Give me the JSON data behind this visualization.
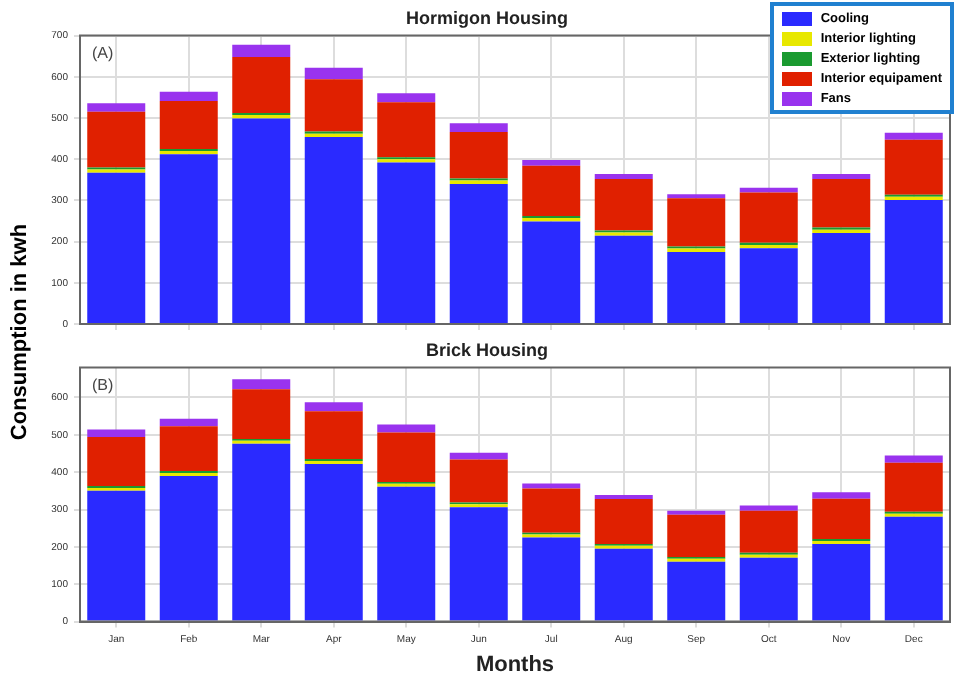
{
  "chart_data": [
    {
      "type": "bar",
      "title": "Hormigon Housing",
      "ylabel": "Consumption in kwh",
      "stacked": true,
      "legend": "top right",
      "tick_labels": "y",
      "grid": true,
      "annotations": [
        "(A)"
      ],
      "categories": [
        null,
        null,
        null,
        null,
        null,
        null,
        null,
        null,
        null,
        null,
        null,
        null
      ],
      "ylim": [
        0,
        700
      ],
      "yticks": [
        0,
        100,
        200,
        300,
        400,
        500,
        600,
        700
      ],
      "series": [
        {
          "name": "Cooling",
          "color": "#2a2aff",
          "values": [
            367,
            412,
            499,
            454,
            392,
            340,
            249,
            214,
            175,
            184,
            221,
            301
          ]
        },
        {
          "name": "Interior lighting",
          "color": "#e8e800",
          "values": [
            8,
            8,
            8,
            8,
            8,
            8,
            8,
            8,
            8,
            8,
            8,
            8
          ]
        },
        {
          "name": "Exterior lighting",
          "color": "#1a9a30",
          "values": [
            5,
            5,
            5,
            5,
            5,
            5,
            5,
            5,
            5,
            5,
            5,
            5
          ]
        },
        {
          "name": "Interior equipament",
          "color": "#e02000",
          "values": [
            135,
            116,
            136,
            127,
            133,
            113,
            122,
            125,
            117,
            122,
            118,
            133
          ]
        },
        {
          "name": "Fans",
          "color": "#9933ee",
          "values": [
            21,
            23,
            30,
            28,
            22,
            21,
            14,
            12,
            10,
            12,
            12,
            17
          ]
        }
      ]
    },
    {
      "type": "bar",
      "title": "Brick Housing",
      "xlabel": "Months",
      "stacked": true,
      "grid": true,
      "annotations": [
        "(B)"
      ],
      "categories": [
        "Jan",
        "Feb",
        "Mar",
        "Apr",
        "May",
        "Jun",
        "Jul",
        "Aug",
        "Sep",
        "Oct",
        "Nov",
        "Dec"
      ],
      "ylim": [
        0,
        680
      ],
      "yticks": [
        0,
        100,
        200,
        300,
        400,
        500,
        600
      ],
      "series": [
        {
          "color": "#2a2aff",
          "values": [
            350,
            390,
            476,
            422,
            361,
            306,
            225,
            195,
            160,
            171,
            208,
            281
          ]
        },
        {
          "color": "#e8e800",
          "values": [
            8,
            8,
            8,
            8,
            8,
            8,
            8,
            8,
            8,
            8,
            8,
            8
          ]
        },
        {
          "color": "#1a9a30",
          "values": [
            5,
            5,
            5,
            5,
            5,
            5,
            5,
            5,
            5,
            5,
            5,
            5
          ]
        },
        {
          "color": "#e02000",
          "values": [
            131,
            120,
            133,
            128,
            132,
            115,
            118,
            120,
            113,
            113,
            108,
            131
          ]
        },
        {
          "color": "#9933ee",
          "values": [
            20,
            20,
            27,
            24,
            22,
            18,
            14,
            11,
            11,
            14,
            17,
            20
          ]
        }
      ]
    }
  ]
}
